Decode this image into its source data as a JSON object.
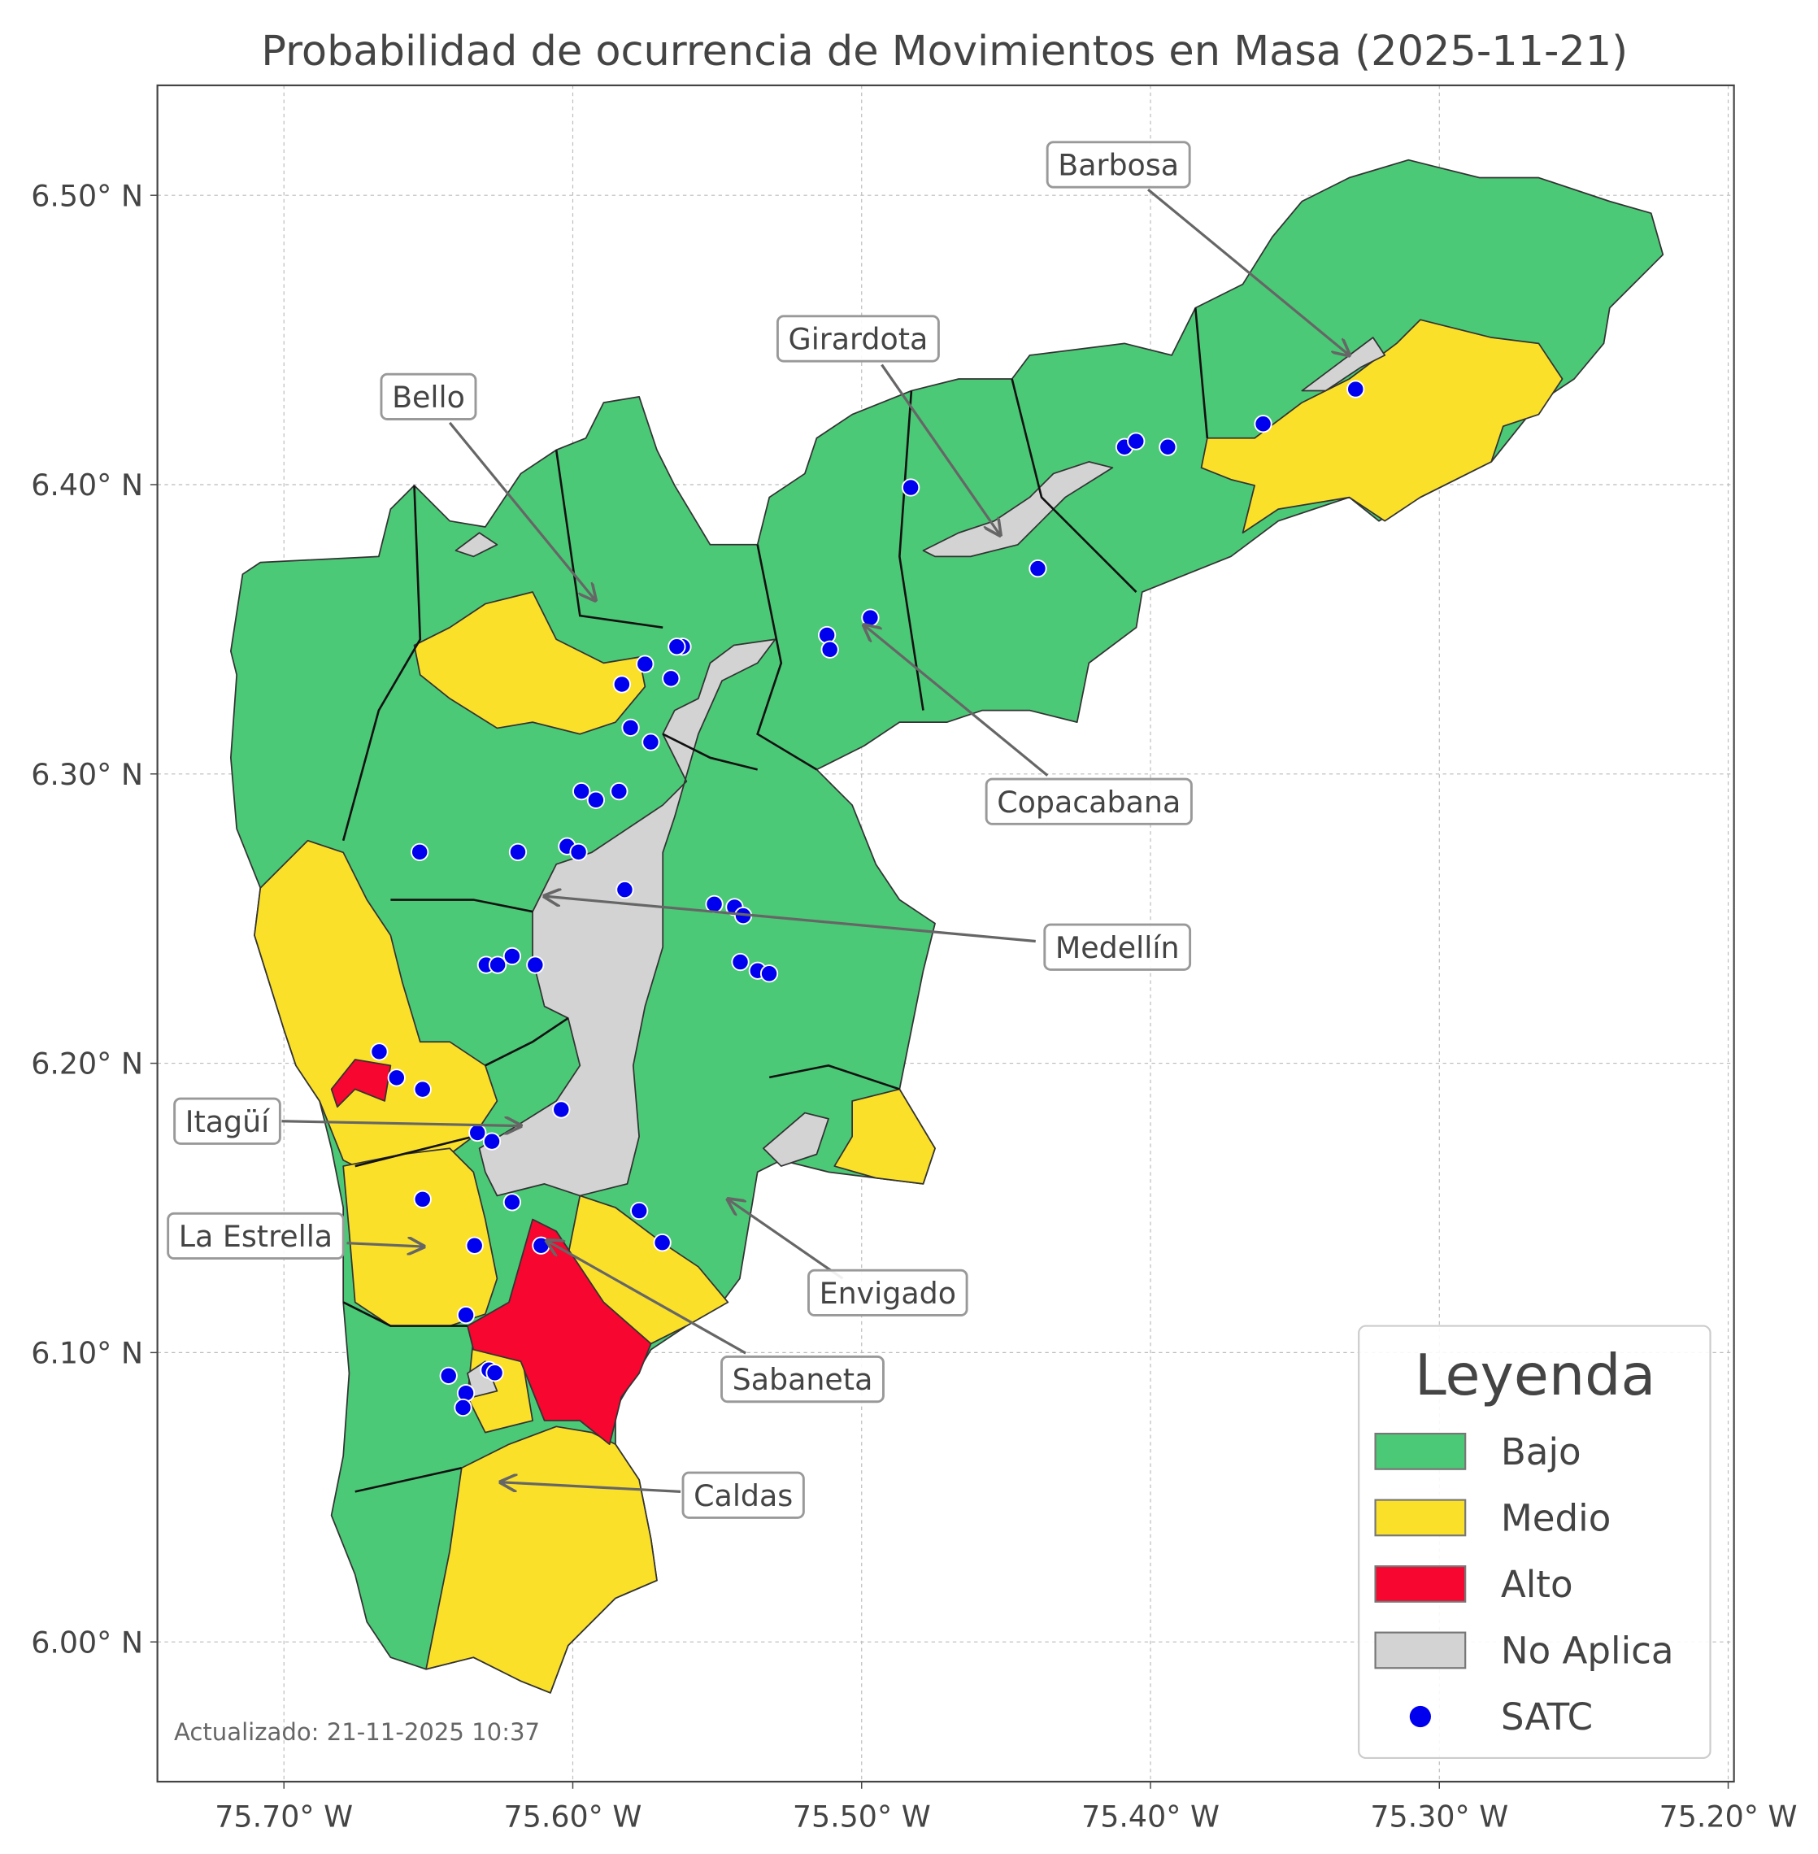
{
  "map": {
    "title": "Probabilidad de ocurrencia de Movimientos en Masa (2025-11-21)",
    "xlim": [
      -75.7438,
      -75.198
    ],
    "ylim": [
      5.9517,
      6.538
    ],
    "xticks": [
      {
        "value": -75.7,
        "label": "75.70° W"
      },
      {
        "value": -75.6,
        "label": "75.60° W"
      },
      {
        "value": -75.5,
        "label": "75.50° W"
      },
      {
        "value": -75.4,
        "label": "75.40° W"
      },
      {
        "value": -75.3,
        "label": "75.30° W"
      },
      {
        "value": -75.2,
        "label": "75.20° W"
      }
    ],
    "yticks": [
      {
        "value": 6.0,
        "label": "6.00° N"
      },
      {
        "value": 6.1,
        "label": "6.10° N"
      },
      {
        "value": 6.2,
        "label": "6.20° N"
      },
      {
        "value": 6.3,
        "label": "6.30° N"
      },
      {
        "value": 6.4,
        "label": "6.40° N"
      },
      {
        "value": 6.5,
        "label": "6.50° N"
      }
    ],
    "grid": true,
    "annotations": [
      "Barbosa",
      "Girardota",
      "Bello",
      "Copacabana",
      "Medellín",
      "Itagüí",
      "La Estrella",
      "Envigado",
      "Sabaneta",
      "Caldas"
    ],
    "legend": {
      "title": "Leyenda",
      "corner": "lower right",
      "items": [
        {
          "label": "Bajo",
          "color": "#4bc977"
        },
        {
          "label": "Medio",
          "color": "#fbe02a"
        },
        {
          "label": "Alto",
          "color": "#f7062f"
        },
        {
          "label": "No Aplica",
          "color": "#d3d3d3"
        },
        {
          "label": "SATC",
          "color": "#0000ee"
        }
      ]
    },
    "satc": {
      "lon": [
        -75.329,
        -75.361,
        -75.409,
        -75.405,
        -75.394,
        -75.483,
        -75.439,
        -75.497,
        -75.512,
        -75.511,
        -75.562,
        -75.564,
        -75.575,
        -75.566,
        -75.583,
        -75.58,
        -75.573,
        -75.597,
        -75.592,
        -75.584,
        -75.653,
        -75.619,
        -75.602,
        -75.598,
        -75.582,
        -75.551,
        -75.544,
        -75.541,
        -75.542,
        -75.536,
        -75.532,
        -75.63,
        -75.626,
        -75.621,
        -75.613,
        -75.667,
        -75.661,
        -75.652,
        -75.604,
        -75.633,
        -75.628,
        -75.621,
        -75.577,
        -75.569,
        -75.652,
        -75.634,
        -75.611,
        -75.637,
        -75.643,
        -75.629,
        -75.627,
        -75.637,
        -75.638
      ],
      "lat": [
        6.433,
        6.421,
        6.413,
        6.415,
        6.413,
        6.399,
        6.371,
        6.354,
        6.348,
        6.343,
        6.344,
        6.344,
        6.338,
        6.333,
        6.331,
        6.316,
        6.311,
        6.294,
        6.291,
        6.294,
        6.273,
        6.273,
        6.275,
        6.273,
        6.26,
        6.255,
        6.254,
        6.251,
        6.235,
        6.232,
        6.231,
        6.234,
        6.234,
        6.237,
        6.234,
        6.204,
        6.195,
        6.191,
        6.184,
        6.176,
        6.173,
        6.152,
        6.149,
        6.138,
        6.153,
        6.137,
        6.137,
        6.113,
        6.092,
        6.094,
        6.093,
        6.086,
        6.081
      ]
    },
    "footnote": "Actualizado: 21-11-2025 10:37"
  }
}
